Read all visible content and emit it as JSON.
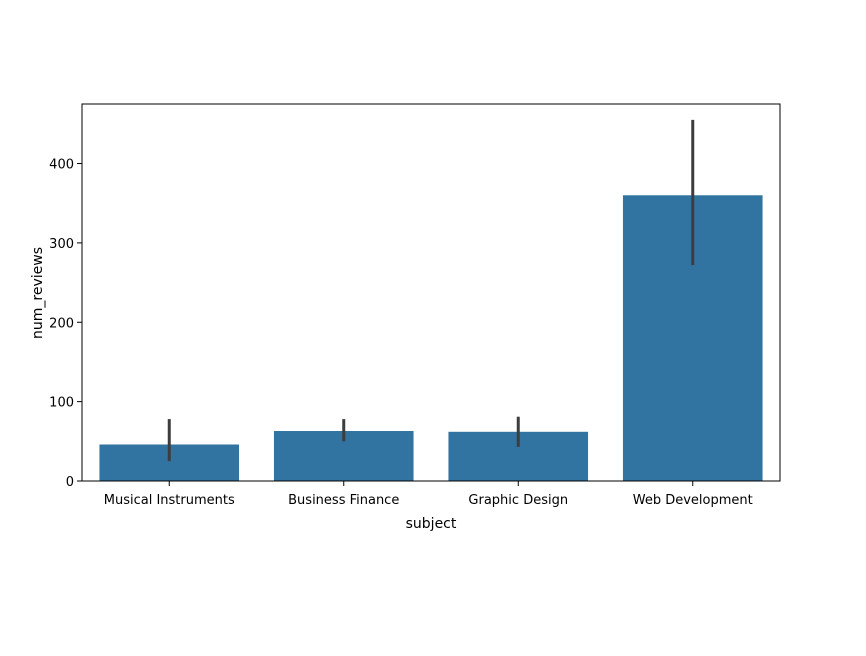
{
  "chart_data": {
    "type": "bar",
    "title": "",
    "xlabel": "subject",
    "ylabel": "num_reviews",
    "categories": [
      "Musical Instruments",
      "Business Finance",
      "Graphic Design",
      "Web Development"
    ],
    "values": [
      46,
      63,
      62,
      360
    ],
    "error_low": [
      25,
      50,
      43,
      272
    ],
    "error_high": [
      78,
      78,
      81,
      455
    ],
    "ylim": [
      0,
      475
    ],
    "yticks": [
      0,
      100,
      200,
      300,
      400
    ],
    "grid": false,
    "colors": {
      "bar": "#3274a1",
      "error_bar": "#3d3d3d",
      "axis": "#000000"
    }
  }
}
